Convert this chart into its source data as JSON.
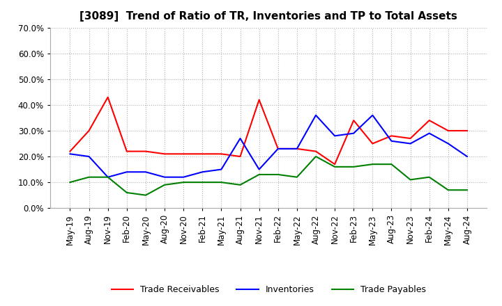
{
  "title": "[3089]  Trend of Ratio of TR, Inventories and TP to Total Assets",
  "x_labels": [
    "May-19",
    "Aug-19",
    "Nov-19",
    "Feb-20",
    "May-20",
    "Aug-20",
    "Nov-20",
    "Feb-21",
    "May-21",
    "Aug-21",
    "Nov-21",
    "Feb-22",
    "May-22",
    "Aug-22",
    "Nov-22",
    "Feb-23",
    "May-23",
    "Aug-23",
    "Nov-23",
    "Feb-24",
    "May-24",
    "Aug-24"
  ],
  "trade_receivables": [
    0.22,
    0.3,
    0.43,
    0.22,
    0.22,
    0.21,
    0.21,
    0.21,
    0.21,
    0.2,
    0.42,
    0.23,
    0.23,
    0.22,
    0.17,
    0.34,
    0.25,
    0.28,
    0.27,
    0.34,
    0.3,
    0.3
  ],
  "inventories": [
    0.21,
    0.2,
    0.12,
    0.14,
    0.14,
    0.12,
    0.12,
    0.14,
    0.15,
    0.27,
    0.15,
    0.23,
    0.23,
    0.36,
    0.28,
    0.29,
    0.36,
    0.26,
    0.25,
    0.29,
    0.25,
    0.2
  ],
  "trade_payables": [
    0.1,
    0.12,
    0.12,
    0.06,
    0.05,
    0.09,
    0.1,
    0.1,
    0.1,
    0.09,
    0.13,
    0.13,
    0.12,
    0.2,
    0.16,
    0.16,
    0.17,
    0.17,
    0.11,
    0.12,
    0.07,
    0.07
  ],
  "tr_color": "#ff0000",
  "inv_color": "#0000ff",
  "tp_color": "#008000",
  "ylim": [
    0.0,
    0.7
  ],
  "yticks": [
    0.0,
    0.1,
    0.2,
    0.3,
    0.4,
    0.5,
    0.6,
    0.7
  ],
  "background_color": "#ffffff",
  "grid_color": "#b0b0b0",
  "title_fontsize": 11,
  "tick_fontsize": 8.5,
  "legend_fontsize": 9
}
